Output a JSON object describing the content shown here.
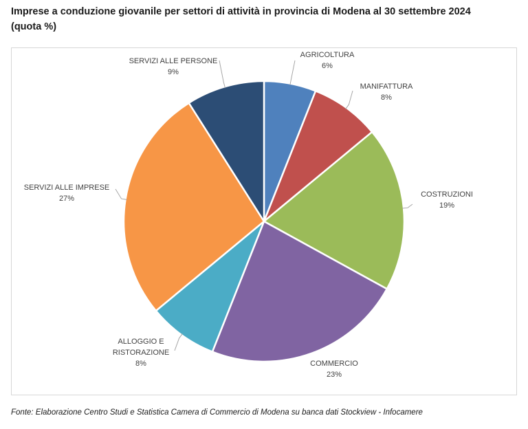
{
  "title_line1": "Imprese a conduzione giovanile per settori di attività in provincia di Modena al 30 settembre 2024",
  "title_line2": "(quota %)",
  "source": "Fonte: Elaborazione Centro Studi e Statistica Camera di Commercio di Modena su banca dati Stockview - Infocamere",
  "chart_data": {
    "type": "pie",
    "title": "",
    "slices": [
      {
        "label": "AGRICOLTURA",
        "value": 6,
        "display": "6%",
        "color": "#4F81BD"
      },
      {
        "label": "MANIFATTURA",
        "value": 8,
        "display": "8%",
        "color": "#C0504D"
      },
      {
        "label": "COSTRUZIONI",
        "value": 19,
        "display": "19%",
        "color": "#9BBB59"
      },
      {
        "label": "COMMERCIO",
        "value": 23,
        "display": "23%",
        "color": "#8064A2"
      },
      {
        "label": "ALLOGGIO E RISTORAZIONE",
        "label_lines": [
          "ALLOGGIO E",
          "RISTORAZIONE"
        ],
        "value": 8,
        "display": "8%",
        "color": "#4BACC6"
      },
      {
        "label": "SERVIZI ALLE IMPRESE",
        "value": 27,
        "display": "27%",
        "color": "#F79646"
      },
      {
        "label": "SERVIZI ALLE PERSONE",
        "value": 9,
        "display": "9%",
        "color": "#2C4D75"
      }
    ],
    "legend": "none",
    "data_labels": "outside with leader lines"
  }
}
